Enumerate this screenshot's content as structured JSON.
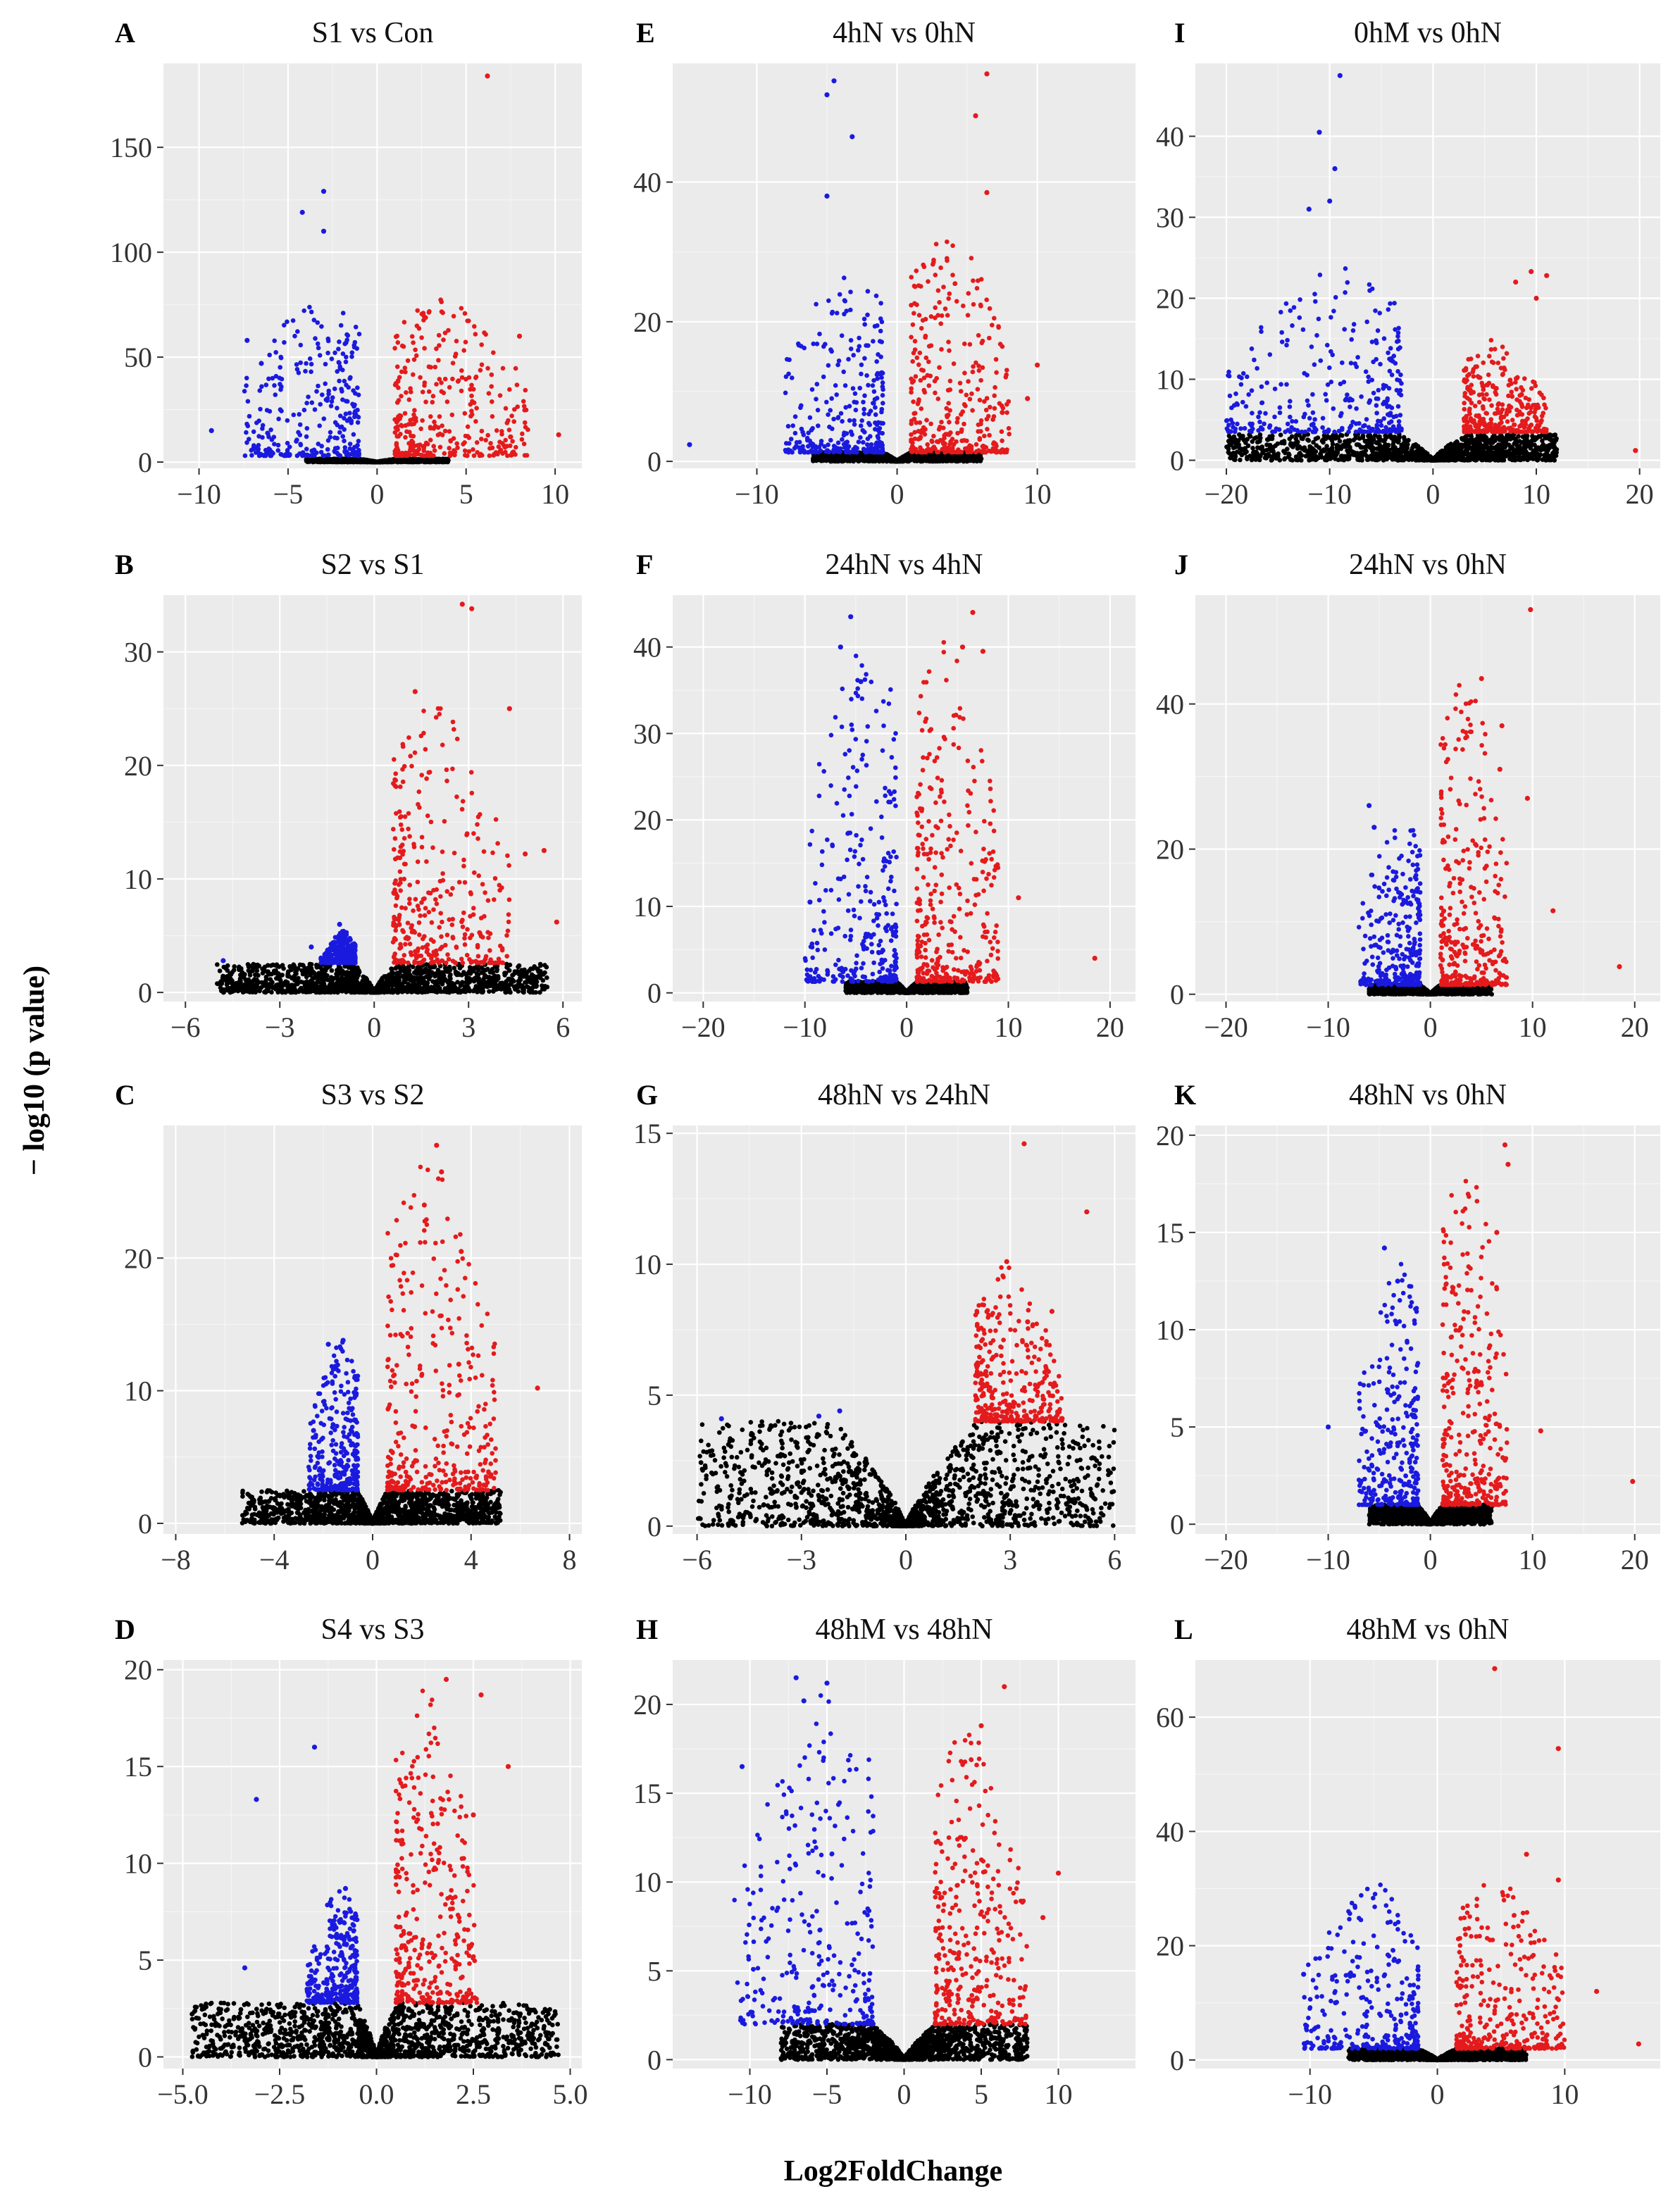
{
  "figure": {
    "ylabel": "− log10 (p value)",
    "xlabel": "Log2FoldChange",
    "colors": {
      "up": "#e41a1c",
      "down": "#1a1adf",
      "ns": "#000000",
      "panel_bg": "#ebebeb",
      "grid": "#ffffff"
    }
  },
  "chart_data": [
    {
      "type": "scatter",
      "letter": "A",
      "title": "S1 vs Con",
      "xlim": [
        -12,
        11.5
      ],
      "ylim": [
        -3,
        190
      ],
      "xticks": [
        -10,
        -5,
        0,
        5,
        10
      ],
      "xtick_labels": [
        "−10",
        "−5",
        "0",
        "5",
        "10"
      ],
      "yticks": [
        0,
        50,
        100,
        150
      ],
      "ytick_labels": [
        "0",
        "50",
        "100",
        "150"
      ],
      "threshold_fc": 1,
      "sig_base": 3,
      "cloud": {
        "down": [
          -7.5,
          -1,
          0.95,
          80,
          2.2
        ],
        "up": [
          1,
          8.5,
          0.95,
          80,
          2.2
        ],
        "ns": [
          -4,
          4,
          0.01,
          1.5,
          1
        ]
      },
      "notable_points": {
        "up": [
          [
            6.2,
            184
          ],
          [
            10.2,
            13
          ],
          [
            8,
            60
          ],
          [
            7.5,
            12
          ]
        ],
        "down": [
          [
            -3,
            129
          ],
          [
            -4.2,
            119
          ],
          [
            -3,
            110
          ],
          [
            -9.3,
            15
          ],
          [
            -7.3,
            58
          ],
          [
            -6.5,
            47
          ]
        ]
      }
    },
    {
      "type": "scatter",
      "letter": "E",
      "title": "4hN vs 0hN",
      "xlim": [
        -16,
        17
      ],
      "ylim": [
        -1,
        57
      ],
      "xticks": [
        -10,
        0,
        10
      ],
      "xtick_labels": [
        "−10",
        "0",
        "10"
      ],
      "yticks": [
        0,
        20,
        40
      ],
      "ytick_labels": [
        "0",
        "20",
        "40"
      ],
      "threshold_fc": 1,
      "sig_base": 1.3,
      "cloud": {
        "down": [
          -8,
          -1,
          0.9,
          28,
          2.5
        ],
        "up": [
          1,
          8,
          0.9,
          34,
          2.5
        ],
        "ns": [
          -6,
          6,
          0.05,
          1.3,
          1
        ]
      },
      "notable_points": {
        "up": [
          [
            6.4,
            55.5
          ],
          [
            5.6,
            49.5
          ],
          [
            6.4,
            38.5
          ],
          [
            10,
            13.8
          ],
          [
            9.3,
            9
          ],
          [
            7.5,
            7
          ]
        ],
        "down": [
          [
            -4.5,
            54.5
          ],
          [
            -5,
            52.5
          ],
          [
            -3.2,
            46.5
          ],
          [
            -5,
            38
          ],
          [
            -14.8,
            2.4
          ]
        ]
      }
    },
    {
      "type": "scatter",
      "letter": "I",
      "title": "0hM vs 0hN",
      "xlim": [
        -23,
        22
      ],
      "ylim": [
        -1,
        49
      ],
      "xticks": [
        -20,
        -10,
        0,
        10,
        20
      ],
      "xtick_labels": [
        "−20",
        "−10",
        "0",
        "10",
        "20"
      ],
      "yticks": [
        0,
        10,
        20,
        30,
        40
      ],
      "ytick_labels": [
        "0",
        "10",
        "20",
        "30",
        "40"
      ],
      "threshold_fc": 3,
      "sig_base": 3.5,
      "cloud": {
        "down": [
          -20,
          -3,
          0.92,
          24,
          2.3
        ],
        "up": [
          3,
          11,
          0.9,
          15,
          2.8
        ],
        "ns": [
          -20,
          12,
          0.02,
          3.2,
          1.4
        ]
      },
      "notable_points": {
        "up": [
          [
            9.5,
            23.3
          ],
          [
            11,
            22.8
          ],
          [
            10,
            20
          ],
          [
            8,
            22
          ],
          [
            19.6,
            1.2
          ]
        ],
        "down": [
          [
            -9,
            47.5
          ],
          [
            -11,
            40.5
          ],
          [
            -9.5,
            36
          ],
          [
            -10,
            32
          ],
          [
            -12,
            31
          ]
        ]
      }
    },
    {
      "type": "scatter",
      "letter": "B",
      "title": "S2 vs S1",
      "xlim": [
        -6.7,
        6.6
      ],
      "ylim": [
        -0.8,
        35
      ],
      "xticks": [
        -6,
        -3,
        0,
        3,
        6
      ],
      "xtick_labels": [
        "−6",
        "−3",
        "0",
        "3",
        "6"
      ],
      "yticks": [
        0,
        10,
        20,
        30
      ],
      "ytick_labels": [
        "0",
        "10",
        "20",
        "30"
      ],
      "threshold_fc": 0.6,
      "sig_base": 2.6,
      "cloud": {
        "down": [
          -1.7,
          -0.6,
          0.88,
          5.5,
          1.6
        ],
        "up": [
          0.6,
          4.3,
          0.93,
          26,
          2.4
        ],
        "ns": [
          -5,
          5.5,
          0.02,
          2.5,
          1.4
        ]
      },
      "notable_points": {
        "up": [
          [
            2.8,
            34.2
          ],
          [
            3.1,
            33.8
          ],
          [
            4.3,
            25
          ],
          [
            1.3,
            26.5
          ],
          [
            5.4,
            12.5
          ],
          [
            5.8,
            6.2
          ],
          [
            4.8,
            12.2
          ]
        ],
        "down": [
          [
            -4.8,
            2.8
          ],
          [
            -2,
            4
          ],
          [
            -1.1,
            6
          ]
        ]
      }
    },
    {
      "type": "scatter",
      "letter": "F",
      "title": "24hN vs 4hN",
      "xlim": [
        -23,
        22.5
      ],
      "ylim": [
        -1,
        46
      ],
      "xticks": [
        -20,
        -10,
        0,
        10,
        20
      ],
      "xtick_labels": [
        "−20",
        "−10",
        "0",
        "10",
        "20"
      ],
      "yticks": [
        0,
        10,
        20,
        30,
        40
      ],
      "ytick_labels": [
        "0",
        "10",
        "20",
        "30",
        "40"
      ],
      "threshold_fc": 1,
      "sig_base": 1.3,
      "cloud": {
        "down": [
          -10,
          -1,
          0.92,
          42,
          2.4
        ],
        "up": [
          1,
          9,
          0.92,
          42,
          2.4
        ],
        "ns": [
          -6,
          6,
          0.05,
          1.3,
          1
        ]
      },
      "notable_points": {
        "up": [
          [
            6.5,
            44
          ],
          [
            5.5,
            40
          ],
          [
            7.5,
            39.5
          ],
          [
            11,
            11
          ],
          [
            18.5,
            4
          ]
        ],
        "down": [
          [
            -5.5,
            43.5
          ],
          [
            -6.5,
            40
          ],
          [
            -9.5,
            10.5
          ],
          [
            -4.5,
            36
          ]
        ]
      }
    },
    {
      "type": "scatter",
      "letter": "J",
      "title": "24hN vs 0hN",
      "xlim": [
        -23,
        22.5
      ],
      "ylim": [
        -1,
        55
      ],
      "xticks": [
        -20,
        -10,
        0,
        10,
        20
      ],
      "xtick_labels": [
        "−20",
        "−10",
        "0",
        "10",
        "20"
      ],
      "yticks": [
        0,
        20,
        40
      ],
      "ytick_labels": [
        "0",
        "20",
        "40"
      ],
      "threshold_fc": 1,
      "sig_base": 1.3,
      "cloud": {
        "down": [
          -7,
          -1,
          0.9,
          26,
          2.7
        ],
        "up": [
          1,
          7.5,
          0.9,
          45,
          2.8
        ],
        "ns": [
          -6,
          6,
          0.05,
          1.3,
          1
        ]
      },
      "notable_points": {
        "up": [
          [
            9.8,
            53
          ],
          [
            7,
            37
          ],
          [
            6.8,
            31
          ],
          [
            9.5,
            27
          ],
          [
            12,
            11.5
          ],
          [
            18.5,
            3.8
          ],
          [
            5,
            43.5
          ]
        ],
        "down": [
          [
            -6,
            26
          ],
          [
            -5.5,
            23
          ]
        ]
      }
    },
    {
      "type": "scatter",
      "letter": "C",
      "title": "S3 vs S2",
      "xlim": [
        -8.5,
        8.5
      ],
      "ylim": [
        -0.8,
        30
      ],
      "xticks": [
        -8,
        -4,
        0,
        4,
        8
      ],
      "xtick_labels": [
        "−8",
        "−4",
        "0",
        "4",
        "8"
      ],
      "yticks": [
        0,
        10,
        20
      ],
      "ytick_labels": [
        "0",
        "10",
        "20"
      ],
      "threshold_fc": 0.6,
      "sig_base": 2.5,
      "cloud": {
        "down": [
          -2.6,
          -0.6,
          0.88,
          14,
          2
        ],
        "up": [
          0.6,
          5,
          0.93,
          28,
          2.4
        ],
        "ns": [
          -5.3,
          5.2,
          0.02,
          2.5,
          1.4
        ]
      },
      "notable_points": {
        "up": [
          [
            2.6,
            28.5
          ],
          [
            2.8,
            26.5
          ],
          [
            3.6,
            20.5
          ],
          [
            6.7,
            10.2
          ],
          [
            2.1,
            24
          ],
          [
            3.5,
            12
          ]
        ],
        "down": [
          [
            -1.8,
            13.5
          ],
          [
            -1.2,
            13.8
          ],
          [
            -2.4,
            7
          ]
        ]
      }
    },
    {
      "type": "scatter",
      "letter": "G",
      "title": "48hN vs 24hN",
      "xlim": [
        -6.7,
        6.6
      ],
      "ylim": [
        -0.3,
        15.3
      ],
      "xticks": [
        -6,
        -3,
        0,
        3,
        6
      ],
      "xtick_labels": [
        "−6",
        "−3",
        "0",
        "3",
        "6"
      ],
      "yticks": [
        0,
        5,
        10,
        15
      ],
      "ytick_labels": [
        "0",
        "5",
        "10",
        "15"
      ],
      "threshold_fc": 2,
      "sig_base": 4,
      "cloud": {
        "down": [
          -6,
          -6,
          0,
          0,
          1
        ],
        "up": [
          2,
          4.5,
          0.75,
          10,
          2.5
        ],
        "ns": [
          -6,
          6,
          0.01,
          4,
          1.5
        ]
      },
      "notable_points": {
        "up": [
          [
            3.4,
            14.6
          ],
          [
            5.2,
            12
          ],
          [
            2.9,
            10.1
          ],
          [
            4.2,
            8.2
          ],
          [
            3.5,
            7.8
          ],
          [
            2.3,
            5.9
          ]
        ],
        "down": [
          [
            -5.3,
            4.1
          ],
          [
            -1.9,
            4.4
          ],
          [
            -2.5,
            4.2
          ]
        ]
      }
    },
    {
      "type": "scatter",
      "letter": "K",
      "title": "48hN vs 0hN",
      "xlim": [
        -23,
        22.5
      ],
      "ylim": [
        -0.5,
        20.5
      ],
      "xticks": [
        -20,
        -10,
        0,
        10,
        20
      ],
      "xtick_labels": [
        "−20",
        "−10",
        "0",
        "10",
        "20"
      ],
      "yticks": [
        0,
        5,
        10,
        15,
        20
      ],
      "ytick_labels": [
        "0",
        "5",
        "10",
        "15",
        "20"
      ],
      "threshold_fc": 1.2,
      "sig_base": 1,
      "cloud": {
        "down": [
          -7,
          -1.2,
          0.9,
          14,
          2.6
        ],
        "up": [
          1.2,
          7.5,
          0.9,
          19,
          2.6
        ],
        "ns": [
          -6,
          6,
          0.05,
          1,
          1
        ]
      },
      "notable_points": {
        "up": [
          [
            7.3,
            19.5
          ],
          [
            7.6,
            18.5
          ],
          [
            6.5,
            15
          ],
          [
            10.8,
            4.8
          ],
          [
            19.8,
            2.2
          ]
        ],
        "down": [
          [
            -4.5,
            14.2
          ],
          [
            -3.2,
            12.5
          ],
          [
            -10,
            5
          ]
        ]
      }
    },
    {
      "type": "scatter",
      "letter": "D",
      "title": "S4 vs S3",
      "xlim": [
        -5.5,
        5.3
      ],
      "ylim": [
        -0.6,
        20.5
      ],
      "xticks": [
        -5,
        -2.5,
        0,
        2.5,
        5
      ],
      "xtick_labels": [
        "−5.0",
        "−2.5",
        "0.0",
        "2.5",
        "5.0"
      ],
      "yticks": [
        0,
        5,
        10,
        15,
        20
      ],
      "ytick_labels": [
        "0",
        "5",
        "10",
        "15",
        "20"
      ],
      "threshold_fc": 0.5,
      "sig_base": 2.8,
      "cloud": {
        "down": [
          -1.8,
          -0.5,
          0.88,
          9,
          2.2
        ],
        "up": [
          0.5,
          2.6,
          0.92,
          19.5,
          2.2
        ],
        "ns": [
          -4.8,
          4.7,
          0.02,
          2.8,
          1.4
        ]
      },
      "notable_points": {
        "up": [
          [
            1.8,
            19.5
          ],
          [
            2.7,
            18.7
          ],
          [
            3.4,
            15
          ],
          [
            2.5,
            12.5
          ],
          [
            2.1,
            6.2
          ]
        ],
        "down": [
          [
            -1.6,
            16
          ],
          [
            -3.1,
            13.3
          ],
          [
            -0.8,
            8.7
          ],
          [
            -3.4,
            4.6
          ]
        ]
      }
    },
    {
      "type": "scatter",
      "letter": "H",
      "title": "48hM vs 48hN",
      "xlim": [
        -15,
        15
      ],
      "ylim": [
        -0.5,
        22.5
      ],
      "xticks": [
        -10,
        -5,
        0,
        5,
        10
      ],
      "xtick_labels": [
        "−10",
        "−5",
        "0",
        "5",
        "10"
      ],
      "yticks": [
        0,
        5,
        10,
        15,
        20
      ],
      "ytick_labels": [
        "0",
        "5",
        "10",
        "15",
        "20"
      ],
      "threshold_fc": 2,
      "sig_base": 2,
      "cloud": {
        "down": [
          -11,
          -2,
          0.95,
          21.5,
          2.2
        ],
        "up": [
          2,
          8,
          0.95,
          19,
          2.2
        ],
        "ns": [
          -8,
          8,
          0.04,
          2,
          1.2
        ]
      },
      "notable_points": {
        "up": [
          [
            10,
            10.5
          ],
          [
            9,
            8
          ],
          [
            6.5,
            21
          ],
          [
            5,
            18.8
          ]
        ],
        "down": [
          [
            -10.5,
            16.5
          ],
          [
            -7,
            21.5
          ],
          [
            -5,
            21.2
          ],
          [
            -6.5,
            20.2
          ]
        ]
      }
    },
    {
      "type": "scatter",
      "letter": "L",
      "title": "48hM vs 0hN",
      "xlim": [
        -19,
        17.5
      ],
      "ylim": [
        -1.5,
        70
      ],
      "xticks": [
        -10,
        0,
        10
      ],
      "xtick_labels": [
        "−10",
        "0",
        "10"
      ],
      "yticks": [
        0,
        20,
        40,
        60
      ],
      "ytick_labels": [
        "0",
        "20",
        "40",
        "60"
      ],
      "threshold_fc": 1.5,
      "sig_base": 2,
      "cloud": {
        "down": [
          -10.5,
          -1.5,
          0.92,
          32,
          2.6
        ],
        "up": [
          1.5,
          10,
          0.92,
          32,
          2.6
        ],
        "ns": [
          -7,
          7,
          0.04,
          2,
          1.2
        ]
      },
      "notable_points": {
        "up": [
          [
            4.5,
            68.5
          ],
          [
            9.5,
            54.5
          ],
          [
            7,
            36
          ],
          [
            9.5,
            31.5
          ],
          [
            12.5,
            12
          ],
          [
            15.8,
            2.8
          ]
        ],
        "down": [
          [
            -10.5,
            15
          ],
          [
            -8,
            10
          ]
        ]
      }
    }
  ]
}
